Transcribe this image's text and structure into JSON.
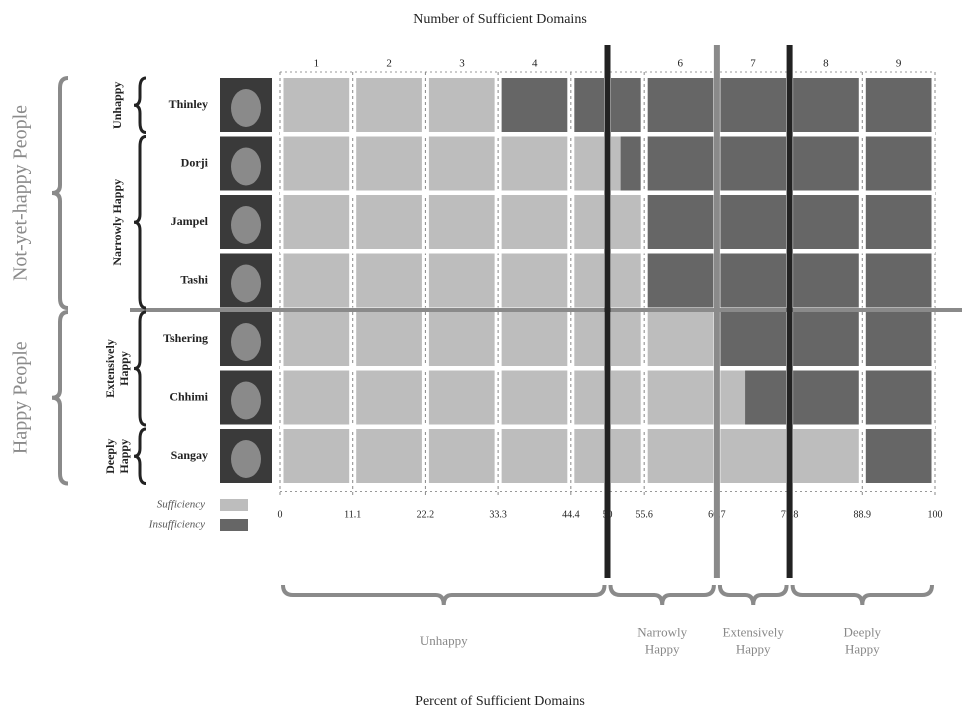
{
  "chart_data": {
    "type": "stacked-hbar",
    "title": "Number of Sufficient Domains",
    "x_label": "Percent of Sufficient Domains",
    "top_categories": [
      "1",
      "2",
      "3",
      "4",
      "5",
      "6",
      "7",
      "8",
      "9"
    ],
    "categories": [
      "Thinley",
      "Dorji",
      "Jampel",
      "Tashi",
      "Tshering",
      "Chhimi",
      "Sangay"
    ],
    "series": [
      {
        "name": "Sufficiency",
        "color": "#bdbdbd",
        "values": [
          33.3,
          52,
          55.6,
          55.6,
          66.7,
          71,
          88.9
        ]
      },
      {
        "name": "Insufficiency",
        "color": "#666666",
        "values": [
          66.7,
          48,
          44.4,
          44.4,
          33.3,
          29,
          11.1
        ]
      }
    ],
    "xlim": [
      0,
      100
    ],
    "xticks": [
      0,
      11.1,
      22.2,
      33.3,
      44.4,
      50,
      55.6,
      66.7,
      77.8,
      88.9,
      100
    ],
    "thresholds": [
      {
        "value": 50,
        "color": "#222222"
      },
      {
        "value": 66.7,
        "color": "#8a8a8a"
      },
      {
        "value": 77.8,
        "color": "#222222"
      }
    ],
    "row_groups": [
      "Unhappy",
      "Narrowly Happy",
      "Extensively Happy",
      "Deeply Happy"
    ],
    "people_groups": [
      "Not-yet-happy People",
      "Happy People"
    ],
    "zone_labels": [
      "Unhappy",
      "Narrowly Happy",
      "Extensively Happy",
      "Deeply Happy"
    ]
  }
}
